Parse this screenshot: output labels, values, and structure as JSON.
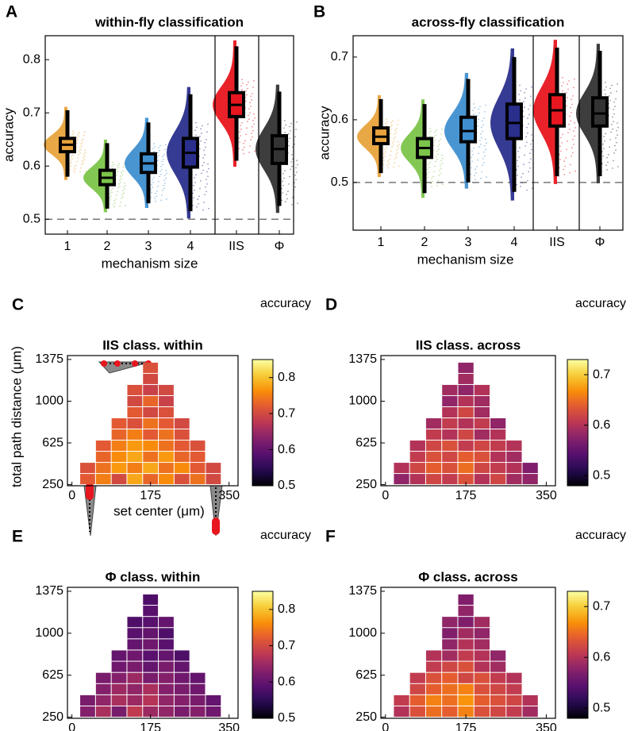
{
  "chart_data": [
    {
      "panel": "A",
      "type": "box",
      "title": "within-fly classification",
      "xlabel": "mechanism size",
      "ylabel": "accuracy",
      "categories": [
        "1",
        "2",
        "3",
        "4",
        "IIS",
        "Φ"
      ],
      "boxes": [
        {
          "color": "#e8a33c",
          "min": 0.58,
          "q1": 0.627,
          "median": 0.64,
          "q3": 0.652,
          "max": 0.705
        },
        {
          "color": "#7cc44a",
          "min": 0.52,
          "q1": 0.565,
          "median": 0.578,
          "q3": 0.592,
          "max": 0.643
        },
        {
          "color": "#3f8fd0",
          "min": 0.53,
          "q1": 0.588,
          "median": 0.605,
          "q3": 0.623,
          "max": 0.682
        },
        {
          "color": "#2a2f8c",
          "min": 0.515,
          "q1": 0.598,
          "median": 0.625,
          "q3": 0.652,
          "max": 0.735
        },
        {
          "color": "#e8161f",
          "min": 0.61,
          "q1": 0.693,
          "median": 0.715,
          "q3": 0.738,
          "max": 0.825
        },
        {
          "color": "#333333",
          "min": 0.525,
          "q1": 0.605,
          "median": 0.632,
          "q3": 0.657,
          "max": 0.74
        }
      ],
      "ylim": [
        0.472,
        0.845
      ],
      "yticks": [
        0.5,
        0.6,
        0.7,
        0.8
      ],
      "reference_line": 0.5
    },
    {
      "panel": "B",
      "type": "box",
      "title": "across-fly classification",
      "xlabel": "mechanism size",
      "ylabel": "accuracy",
      "categories": [
        "1",
        "2",
        "3",
        "4",
        "IIS",
        "Φ"
      ],
      "boxes": [
        {
          "color": "#e8a33c",
          "min": 0.515,
          "q1": 0.562,
          "median": 0.573,
          "q3": 0.587,
          "max": 0.633
        },
        {
          "color": "#7cc44a",
          "min": 0.483,
          "q1": 0.54,
          "median": 0.555,
          "q3": 0.57,
          "max": 0.625
        },
        {
          "color": "#3f8fd0",
          "min": 0.5,
          "q1": 0.565,
          "median": 0.582,
          "q3": 0.604,
          "max": 0.665
        },
        {
          "color": "#2a2f8c",
          "min": 0.485,
          "q1": 0.57,
          "median": 0.595,
          "q3": 0.625,
          "max": 0.7
        },
        {
          "color": "#e8161f",
          "min": 0.51,
          "q1": 0.59,
          "median": 0.615,
          "q3": 0.64,
          "max": 0.715
        },
        {
          "color": "#333333",
          "min": 0.51,
          "q1": 0.59,
          "median": 0.61,
          "q3": 0.635,
          "max": 0.71
        }
      ],
      "ylim": [
        0.424,
        0.734
      ],
      "yticks": [
        0.5,
        0.6,
        0.7
      ],
      "reference_line": 0.5
    },
    {
      "panel": "C",
      "type": "heatmap",
      "title": "IIS class. within",
      "colorbar_label": "accuracy",
      "xlabel": "set center (μm)",
      "ylabel": "total path distance (μm)",
      "x": [
        35,
        70,
        105,
        140,
        175,
        210,
        245,
        280,
        315
      ],
      "y": [
        300,
        400,
        500,
        600,
        700,
        800,
        900,
        1000,
        1100,
        1200,
        1300
      ],
      "values": [
        [
          0.72,
          0.75,
          0.7,
          0.78,
          0.73,
          0.76,
          0.71,
          0.74,
          0.7
        ],
        [
          0.71,
          0.74,
          0.77,
          0.75,
          0.78,
          0.74,
          0.76,
          0.72,
          0.7
        ],
        [
          null,
          0.73,
          0.76,
          0.78,
          0.74,
          0.77,
          0.73,
          0.72,
          null
        ],
        [
          null,
          0.72,
          0.75,
          0.77,
          0.76,
          0.74,
          0.72,
          0.71,
          null
        ],
        [
          null,
          null,
          0.73,
          0.75,
          0.72,
          0.74,
          0.71,
          null,
          null
        ],
        [
          null,
          null,
          0.72,
          0.71,
          0.74,
          0.72,
          0.7,
          null,
          null
        ],
        [
          null,
          null,
          null,
          0.72,
          0.7,
          0.71,
          null,
          null,
          null
        ],
        [
          null,
          null,
          null,
          0.7,
          0.73,
          0.69,
          null,
          null,
          null
        ],
        [
          null,
          null,
          null,
          0.71,
          0.69,
          0.7,
          null,
          null,
          null
        ],
        [
          null,
          null,
          null,
          null,
          0.7,
          null,
          null,
          null,
          null
        ],
        [
          null,
          null,
          null,
          null,
          0.71,
          null,
          null,
          null,
          null
        ]
      ],
      "xlim": [
        -10,
        370
      ],
      "ylim": [
        240,
        1410
      ],
      "xticks": [
        0,
        175,
        350
      ],
      "yticks": [
        250,
        625,
        1000,
        1375
      ],
      "clim": [
        0.5,
        0.85
      ],
      "cticks": [
        0.5,
        0.6,
        0.7,
        0.8
      ],
      "colormap": "inferno"
    },
    {
      "panel": "D",
      "type": "heatmap",
      "title": "IIS class. across",
      "colorbar_label": "accuracy",
      "x": [
        35,
        70,
        105,
        140,
        175,
        210,
        245,
        280,
        315
      ],
      "y": [
        300,
        400,
        500,
        600,
        700,
        800,
        900,
        1000,
        1100,
        1200,
        1300
      ],
      "values": [
        [
          0.58,
          0.6,
          0.62,
          0.61,
          0.63,
          0.6,
          0.62,
          0.59,
          0.58
        ],
        [
          0.6,
          0.62,
          0.64,
          0.63,
          0.65,
          0.62,
          0.61,
          0.6,
          0.57
        ],
        [
          null,
          0.61,
          0.63,
          0.62,
          0.64,
          0.63,
          0.6,
          0.59,
          null
        ],
        [
          null,
          0.6,
          0.62,
          0.63,
          0.61,
          0.62,
          0.61,
          0.6,
          null
        ],
        [
          null,
          null,
          0.61,
          0.6,
          0.62,
          0.59,
          0.6,
          null,
          null
        ],
        [
          null,
          null,
          0.59,
          0.61,
          0.6,
          0.61,
          0.58,
          null,
          null
        ],
        [
          null,
          null,
          null,
          0.6,
          0.62,
          0.59,
          null,
          null,
          null
        ],
        [
          null,
          null,
          null,
          0.58,
          0.6,
          0.59,
          null,
          null,
          null
        ],
        [
          null,
          null,
          null,
          0.59,
          0.58,
          0.6,
          null,
          null,
          null
        ],
        [
          null,
          null,
          null,
          null,
          0.59,
          null,
          null,
          null,
          null
        ],
        [
          null,
          null,
          null,
          null,
          0.58,
          null,
          null,
          null,
          null
        ]
      ],
      "xlim": [
        -10,
        370
      ],
      "ylim": [
        240,
        1410
      ],
      "xticks": [
        0,
        175,
        350
      ],
      "yticks": [
        250,
        625,
        1000,
        1375
      ],
      "clim": [
        0.48,
        0.73
      ],
      "cticks": [
        0.5,
        0.6,
        0.7
      ],
      "colormap": "inferno"
    },
    {
      "panel": "E",
      "type": "heatmap",
      "title": "Φ class. within",
      "colorbar_label": "accuracy",
      "x": [
        35,
        70,
        105,
        140,
        175,
        210,
        245,
        280,
        315
      ],
      "y": [
        300,
        400,
        500,
        600,
        700,
        800,
        900,
        1000,
        1100,
        1200,
        1300
      ],
      "values": [
        [
          0.63,
          0.66,
          0.62,
          0.68,
          0.65,
          0.64,
          0.62,
          0.63,
          0.61
        ],
        [
          0.62,
          0.64,
          0.66,
          0.65,
          0.67,
          0.64,
          0.63,
          0.62,
          0.6
        ],
        [
          null,
          0.63,
          0.65,
          0.64,
          0.66,
          0.63,
          0.62,
          0.61,
          null
        ],
        [
          null,
          0.62,
          0.63,
          0.65,
          0.62,
          0.63,
          0.61,
          0.6,
          null
        ],
        [
          null,
          null,
          0.61,
          0.62,
          0.6,
          0.62,
          0.6,
          null,
          null
        ],
        [
          null,
          null,
          0.6,
          0.61,
          0.59,
          0.6,
          0.58,
          null,
          null
        ],
        [
          null,
          null,
          null,
          0.6,
          0.61,
          0.59,
          null,
          null,
          null
        ],
        [
          null,
          null,
          null,
          0.59,
          0.6,
          0.58,
          null,
          null,
          null
        ],
        [
          null,
          null,
          null,
          0.58,
          0.59,
          0.6,
          null,
          null,
          null
        ],
        [
          null,
          null,
          null,
          null,
          0.59,
          null,
          null,
          null,
          null
        ],
        [
          null,
          null,
          null,
          null,
          0.58,
          null,
          null,
          null,
          null
        ]
      ],
      "xlim": [
        -10,
        370
      ],
      "ylim": [
        240,
        1410
      ],
      "xticks": [
        0,
        175,
        350
      ],
      "yticks": [
        250,
        625,
        1000,
        1375
      ],
      "clim": [
        0.5,
        0.85
      ],
      "cticks": [
        0.5,
        0.6,
        0.7,
        0.8
      ],
      "colormap": "inferno"
    },
    {
      "panel": "F",
      "type": "heatmap",
      "title": "Φ class. across",
      "colorbar_label": "accuracy",
      "x": [
        35,
        70,
        105,
        140,
        175,
        210,
        245,
        280,
        315
      ],
      "y": [
        300,
        400,
        500,
        600,
        700,
        800,
        900,
        1000,
        1100,
        1200,
        1300
      ],
      "values": [
        [
          0.6,
          0.63,
          0.65,
          0.64,
          0.66,
          0.63,
          0.62,
          0.61,
          0.59
        ],
        [
          0.61,
          0.64,
          0.66,
          0.65,
          0.67,
          0.64,
          0.63,
          0.62,
          0.6
        ],
        [
          null,
          0.62,
          0.64,
          0.65,
          0.66,
          0.63,
          0.62,
          0.61,
          null
        ],
        [
          null,
          0.61,
          0.63,
          0.64,
          0.62,
          0.63,
          0.61,
          0.6,
          null
        ],
        [
          null,
          null,
          0.61,
          0.62,
          0.63,
          0.6,
          0.59,
          null,
          null
        ],
        [
          null,
          null,
          0.6,
          0.59,
          0.61,
          0.6,
          0.58,
          null,
          null
        ],
        [
          null,
          null,
          null,
          0.58,
          0.6,
          0.59,
          null,
          null,
          null
        ],
        [
          null,
          null,
          null,
          0.57,
          0.59,
          0.58,
          null,
          null,
          null
        ],
        [
          null,
          null,
          null,
          0.58,
          0.57,
          0.59,
          null,
          null,
          null
        ],
        [
          null,
          null,
          null,
          null,
          0.58,
          null,
          null,
          null,
          null
        ],
        [
          null,
          null,
          null,
          null,
          0.57,
          null,
          null,
          null,
          null
        ]
      ],
      "xlim": [
        -10,
        370
      ],
      "ylim": [
        240,
        1410
      ],
      "xticks": [
        0,
        175,
        350
      ],
      "yticks": [
        250,
        625,
        1000,
        1375
      ],
      "clim": [
        0.48,
        0.73
      ],
      "cticks": [
        0.5,
        0.6,
        0.7
      ],
      "colormap": "inferno"
    }
  ]
}
